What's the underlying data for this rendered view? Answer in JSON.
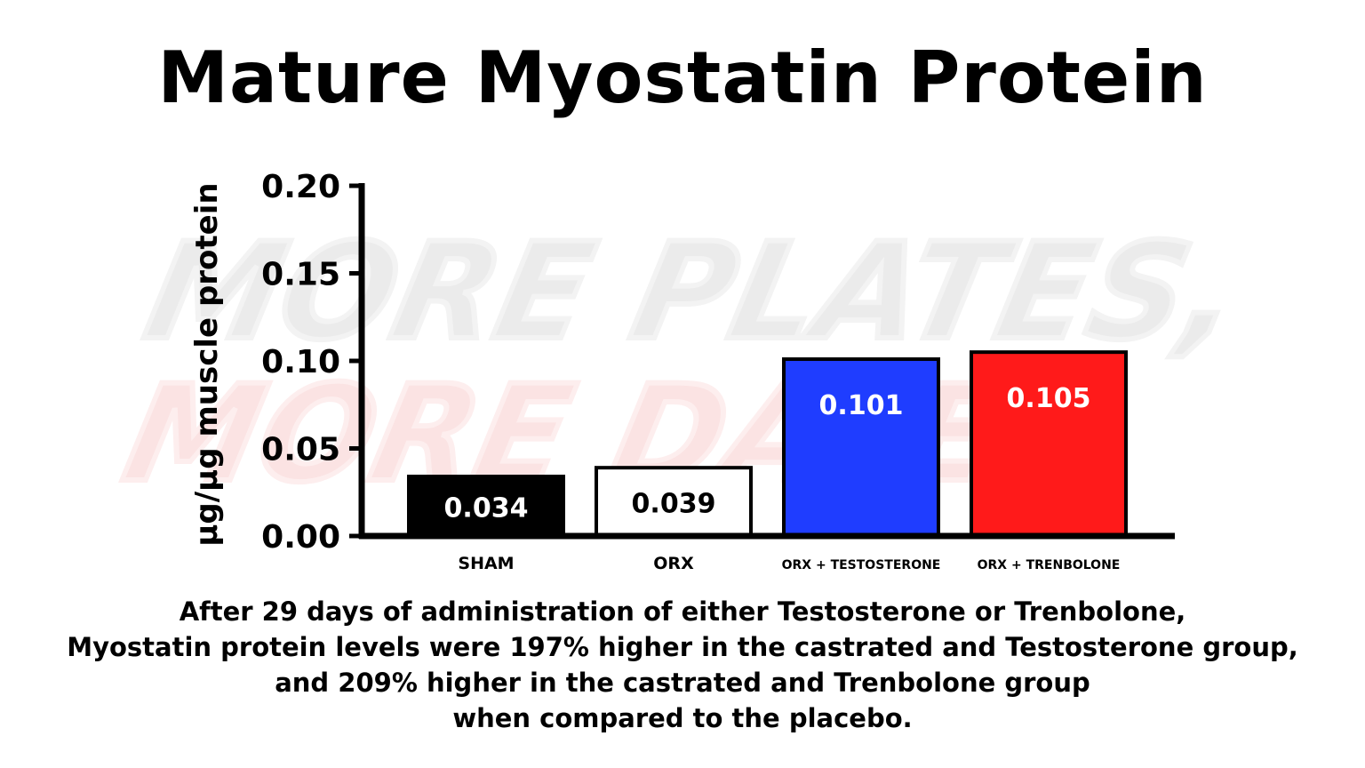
{
  "chart_data": {
    "type": "bar",
    "title": "Mature Myostatin Protein",
    "ylabel": "µg/µg muscle protein",
    "xlabel": "",
    "ylim": [
      0,
      0.2
    ],
    "yticks": [
      "0.00",
      "0.05",
      "0.10",
      "0.15",
      "0.20"
    ],
    "categories": [
      "SHAM",
      "ORX",
      "ORX + TESTOSTERONE",
      "ORX + TRENBOLONE"
    ],
    "values": [
      0.034,
      0.039,
      0.101,
      0.105
    ],
    "value_labels": [
      "0.034",
      "0.039",
      "0.101",
      "0.105"
    ],
    "bar_colors": [
      "#000000",
      "#ffffff",
      "#1f3dff",
      "#ff1a1a"
    ],
    "label_colors": [
      "#ffffff",
      "#000000",
      "#ffffff",
      "#ffffff"
    ],
    "grid": false,
    "legend": "none"
  },
  "watermark": {
    "line1": "MORE PLATES,",
    "line2": "MORE DATES"
  },
  "caption": {
    "line1": "After 29 days of administration of either Testosterone or Trenbolone,",
    "line2": "Myostatin protein levels were 197% higher in the castrated and Testosterone group,",
    "line3": "and 209% higher in the castrated and Trenbolone group",
    "line4": "when compared to the placebo."
  }
}
